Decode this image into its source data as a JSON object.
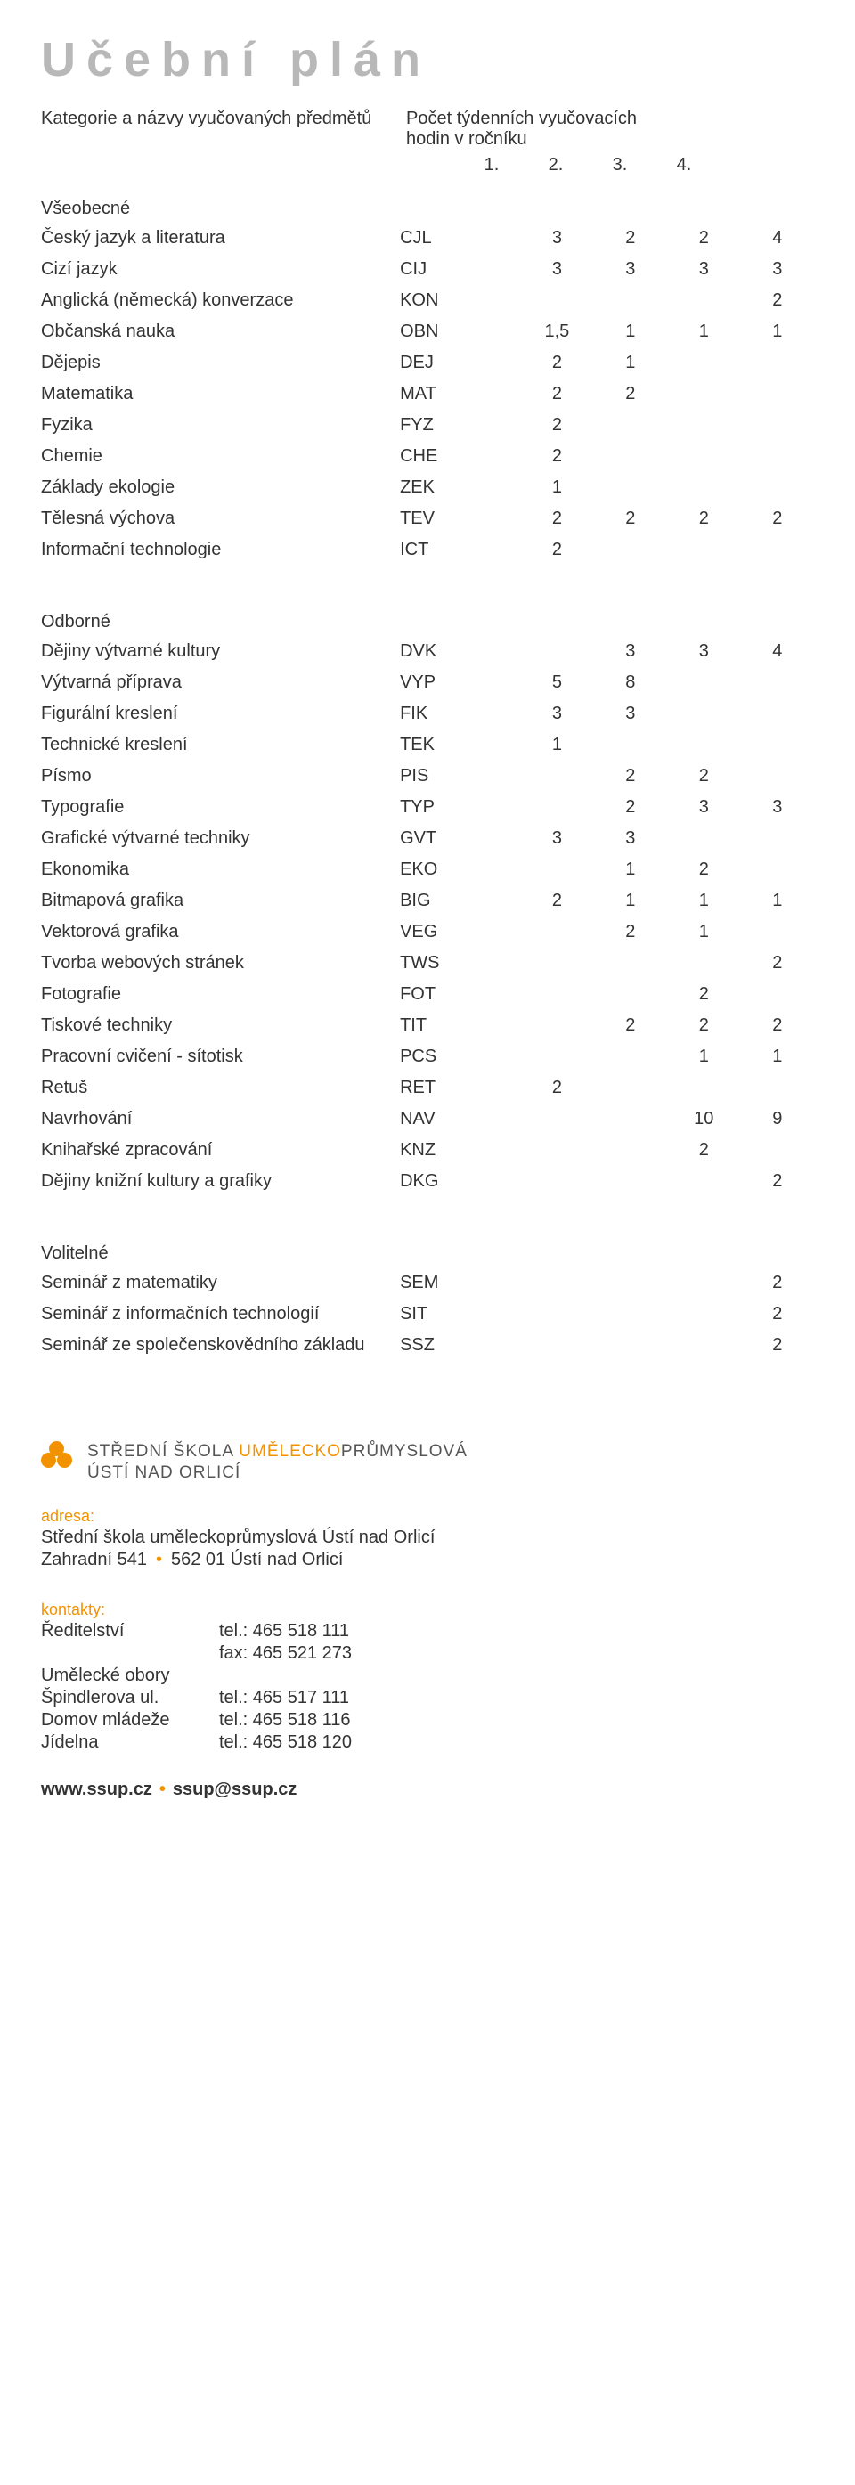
{
  "colors": {
    "title_gray": "#b8b8b8",
    "text": "#3a3a3a",
    "accent_orange": "#f39200",
    "background": "#ffffff"
  },
  "title": "Učební plán",
  "header": {
    "left": "Kategorie a názvy vyučovaných předmětů",
    "right_line1": "Počet týdenních vyučovacích",
    "right_line2": "hodin v ročníku",
    "year1": "1.",
    "year2": "2.",
    "year3": "3.",
    "year4": "4."
  },
  "sections": {
    "general": "Všeobecné",
    "specialized": "Odborné",
    "optional": "Volitelné"
  },
  "general": [
    {
      "name": "Český jazyk a literatura",
      "code": "CJL",
      "v": [
        "3",
        "2",
        "2",
        "4"
      ]
    },
    {
      "name": "Cizí jazyk",
      "code": "CIJ",
      "v": [
        "3",
        "3",
        "3",
        "3"
      ]
    },
    {
      "name": "Anglická (německá) konverzace",
      "code": "KON",
      "v": [
        "",
        "",
        "",
        "2"
      ]
    },
    {
      "name": "Občanská nauka",
      "code": "OBN",
      "v": [
        "1,5",
        "1",
        "1",
        "1"
      ]
    },
    {
      "name": "Dějepis",
      "code": "DEJ",
      "v": [
        "2",
        "1",
        "",
        ""
      ]
    },
    {
      "name": "Matematika",
      "code": "MAT",
      "v": [
        "2",
        "2",
        "",
        ""
      ]
    },
    {
      "name": "Fyzika",
      "code": "FYZ",
      "v": [
        "2",
        "",
        "",
        ""
      ]
    },
    {
      "name": "Chemie",
      "code": "CHE",
      "v": [
        "2",
        "",
        "",
        ""
      ]
    },
    {
      "name": "Základy ekologie",
      "code": "ZEK",
      "v": [
        "1",
        "",
        "",
        ""
      ]
    },
    {
      "name": "Tělesná výchova",
      "code": "TEV",
      "v": [
        "2",
        "2",
        "2",
        "2"
      ]
    },
    {
      "name": "Informační technologie",
      "code": "ICT",
      "v": [
        "2",
        "",
        "",
        ""
      ]
    }
  ],
  "specialized": [
    {
      "name": "Dějiny výtvarné kultury",
      "code": "DVK",
      "v": [
        "",
        "3",
        "3",
        "4"
      ]
    },
    {
      "name": "Výtvarná příprava",
      "code": "VYP",
      "v": [
        "5",
        "8",
        "",
        ""
      ]
    },
    {
      "name": "Figurální kreslení",
      "code": "FIK",
      "v": [
        "3",
        "3",
        "",
        ""
      ]
    },
    {
      "name": "Technické kreslení",
      "code": "TEK",
      "v": [
        "1",
        "",
        "",
        ""
      ]
    },
    {
      "name": "Písmo",
      "code": "PIS",
      "v": [
        "",
        "2",
        "2",
        ""
      ]
    },
    {
      "name": "Typografie",
      "code": "TYP",
      "v": [
        "",
        "2",
        "3",
        "3"
      ]
    },
    {
      "name": "Grafické výtvarné techniky",
      "code": "GVT",
      "v": [
        "3",
        "3",
        "",
        ""
      ]
    },
    {
      "name": "Ekonomika",
      "code": "EKO",
      "v": [
        "",
        "1",
        "2",
        ""
      ]
    },
    {
      "name": "Bitmapová grafika",
      "code": "BIG",
      "v": [
        "2",
        "1",
        "1",
        "1"
      ]
    },
    {
      "name": "Vektorová grafika",
      "code": "VEG",
      "v": [
        "",
        "2",
        "1",
        ""
      ]
    },
    {
      "name": "Tvorba webových stránek",
      "code": "TWS",
      "v": [
        "",
        "",
        "",
        "2"
      ]
    },
    {
      "name": "Fotografie",
      "code": "FOT",
      "v": [
        "",
        "",
        "2",
        ""
      ]
    },
    {
      "name": "Tiskové techniky",
      "code": "TIT",
      "v": [
        "",
        "2",
        "2",
        "2"
      ]
    },
    {
      "name": "Pracovní cvičení - sítotisk",
      "code": "PCS",
      "v": [
        "",
        "",
        "1",
        "1"
      ]
    },
    {
      "name": "Retuš",
      "code": "RET",
      "v": [
        "2",
        "",
        "",
        ""
      ]
    },
    {
      "name": "Navrhování",
      "code": "NAV",
      "v": [
        "",
        "",
        "10",
        "9"
      ]
    },
    {
      "name": "Knihařské zpracování",
      "code": "KNZ",
      "v": [
        "",
        "",
        "2",
        ""
      ]
    },
    {
      "name": "Dějiny knižní kultury a grafiky",
      "code": "DKG",
      "v": [
        "",
        "",
        "",
        "2"
      ]
    }
  ],
  "optional": [
    {
      "name": "Seminář z matematiky",
      "code": "SEM",
      "v": [
        "",
        "",
        "",
        "2"
      ]
    },
    {
      "name": "Seminář z informačních technologií",
      "code": "SIT",
      "v": [
        "",
        "",
        "",
        "2"
      ]
    },
    {
      "name": "Seminář ze společenskovědního základu",
      "code": "SSZ",
      "v": [
        "",
        "",
        "",
        "2"
      ]
    }
  ],
  "school": {
    "line1_a": "STŘEDNÍ ŠKOLA ",
    "line1_b": "UMĚLECKO",
    "line1_c": "PRŮMYSLOVÁ",
    "line2": "ÚSTÍ NAD ORLICÍ"
  },
  "address": {
    "label": "adresa:",
    "line1": "Střední škola uměleckoprůmyslová Ústí nad Orlicí",
    "line2a": "Zahradní 541",
    "line2b": "562 01 Ústí nad Orlicí"
  },
  "contacts": {
    "label": "kontakty:",
    "rows": [
      {
        "name": "Ředitelství",
        "val": "tel.: 465 518 111"
      },
      {
        "name": "",
        "val": "fax: 465 521 273"
      },
      {
        "name": "Umělecké obory",
        "val": ""
      },
      {
        "name": "Špindlerova ul.",
        "val": "tel.: 465 517 111"
      },
      {
        "name": "Domov mládeže",
        "val": "tel.: 465 518 116"
      },
      {
        "name": "Jídelna",
        "val": "tel.: 465 518 120"
      }
    ]
  },
  "footer": {
    "web": "www.ssup.cz",
    "email": "ssup@ssup.cz"
  }
}
